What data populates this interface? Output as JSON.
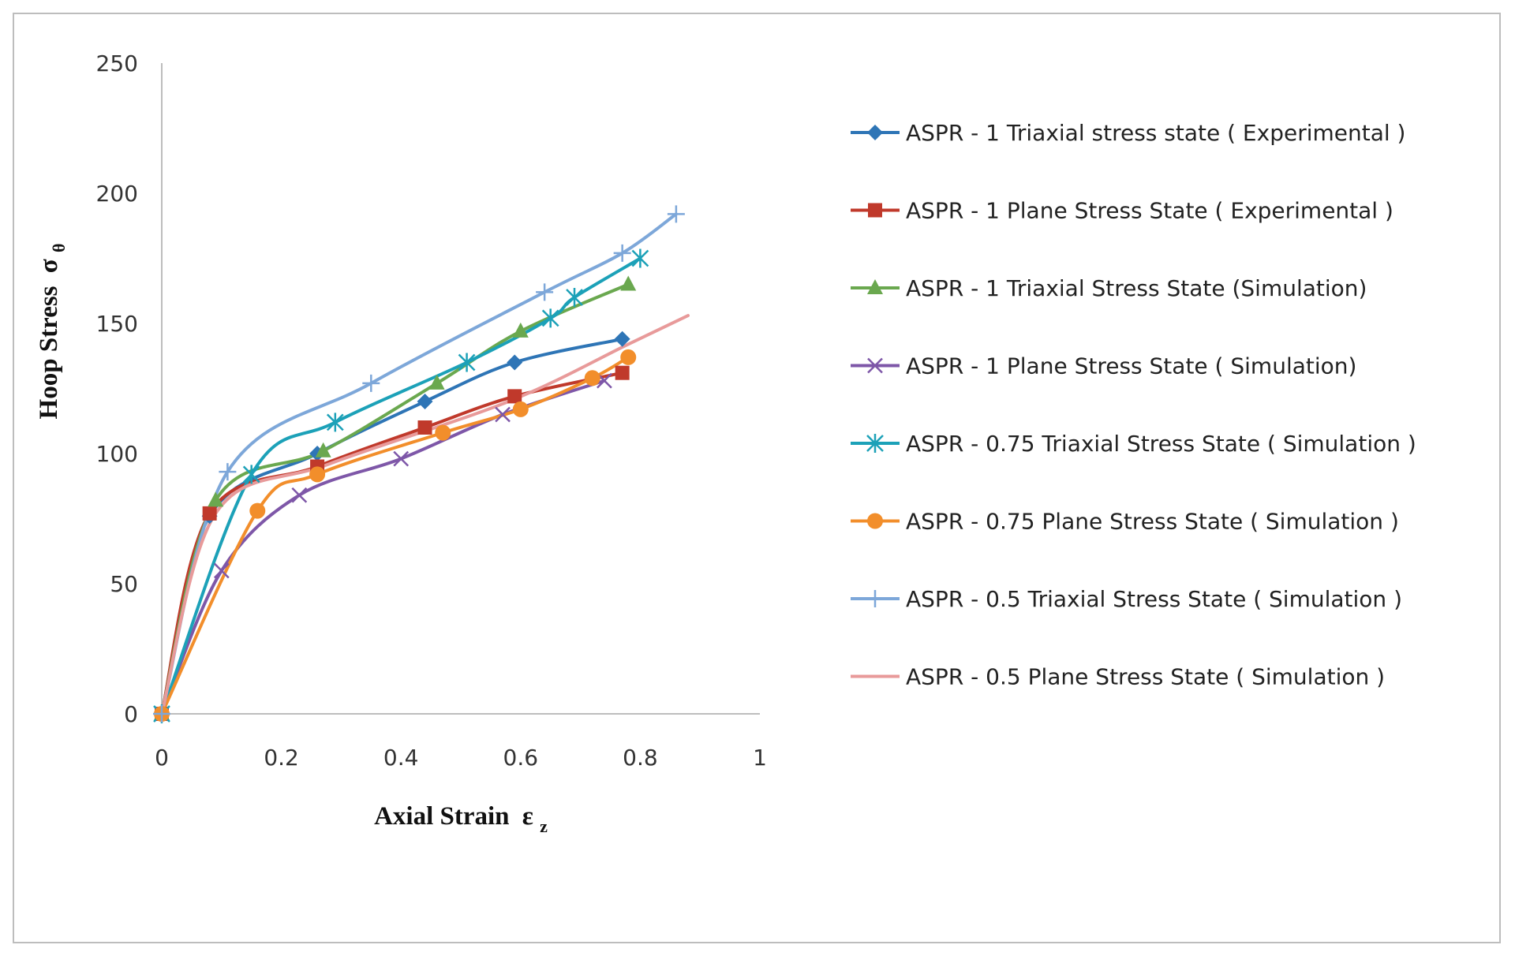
{
  "chart_data": {
    "type": "line",
    "xlabel": "Axial Strain",
    "xlabel_sub": "z",
    "xlabel_symbol": "ε",
    "ylabel": "Hoop Stress",
    "ylabel_symbol": "σ",
    "ylabel_sub": "θ",
    "xlim": [
      0,
      1
    ],
    "ylim": [
      0,
      250
    ],
    "x_ticks": [
      "0",
      "0.2",
      "0.4",
      "0.6",
      "0.8",
      "1"
    ],
    "x_tick_values": [
      0,
      0.2,
      0.4,
      0.6,
      0.8,
      1
    ],
    "y_ticks": [
      "0",
      "50",
      "100",
      "150",
      "200",
      "250"
    ],
    "y_tick_values": [
      0,
      50,
      100,
      150,
      200,
      250
    ],
    "grid": false,
    "legend_position": "right",
    "series": [
      {
        "name": "ASPR - 1 Triaxial stress state ( Experimental )",
        "color": "#2e75b6",
        "marker": "diamond",
        "x": [
          0,
          0.08,
          0.26,
          0.44,
          0.59,
          0.77
        ],
        "y": [
          0,
          76,
          100,
          120,
          135,
          144
        ]
      },
      {
        "name": "ASPR - 1 Plane Stress State ( Experimental )",
        "color": "#c0392b",
        "marker": "square",
        "x": [
          0,
          0.08,
          0.26,
          0.44,
          0.59,
          0.77
        ],
        "y": [
          0,
          77,
          95,
          110,
          122,
          131
        ]
      },
      {
        "name": "ASPR - 1 Triaxial Stress State (Simulation)",
        "color": "#6aa84f",
        "marker": "triangle",
        "x": [
          0,
          0.09,
          0.27,
          0.46,
          0.6,
          0.78
        ],
        "y": [
          0,
          82,
          101,
          127,
          147,
          165
        ]
      },
      {
        "name": "ASPR - 1 Plane Stress State ( Simulation)",
        "color": "#7e57a8",
        "marker": "x",
        "x": [
          0,
          0.1,
          0.23,
          0.4,
          0.57,
          0.74
        ],
        "y": [
          0,
          55,
          84,
          98,
          115,
          128
        ]
      },
      {
        "name": "ASPR - 0.75 Triaxial Stress State ( Simulation )",
        "color": "#1ca1b8",
        "marker": "star",
        "x": [
          0,
          0.15,
          0.29,
          0.51,
          0.65,
          0.69,
          0.8
        ],
        "y": [
          0,
          92,
          112,
          135,
          152,
          160,
          175
        ]
      },
      {
        "name": "ASPR - 0.75 Plane Stress State ( Simulation )",
        "color": "#f28e2b",
        "marker": "circle",
        "x": [
          0,
          0.16,
          0.26,
          0.47,
          0.6,
          0.72,
          0.78
        ],
        "y": [
          0,
          78,
          92,
          108,
          117,
          129,
          137
        ]
      },
      {
        "name": "ASPR - 0.5 Triaxial Stress State ( Simulation )",
        "color": "#7da7d9",
        "marker": "plus",
        "x": [
          0,
          0.11,
          0.35,
          0.64,
          0.77,
          0.86
        ],
        "y": [
          0,
          93,
          127,
          162,
          177,
          192
        ]
      },
      {
        "name": "ASPR - 0.5 Plane Stress State ( Simulation )",
        "color": "#e89a9a",
        "marker": "none",
        "x": [
          0,
          0.09,
          0.28,
          0.58,
          0.78,
          0.88
        ],
        "y": [
          0,
          77,
          96,
          120,
          142,
          153
        ]
      }
    ]
  }
}
